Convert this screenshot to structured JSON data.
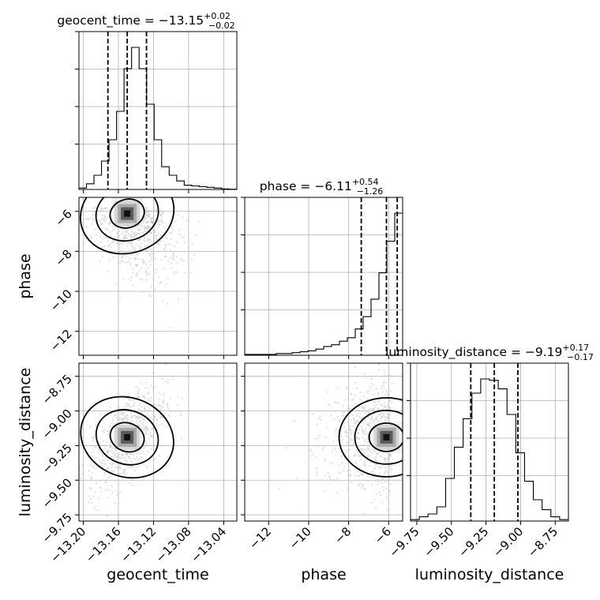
{
  "chart_data": {
    "type": "corner",
    "parameters": [
      {
        "name": "geocent_time",
        "title": "geocent_time = −13.15",
        "median": -13.15,
        "plus": "+0.02",
        "minus": "−0.02",
        "quantiles": [
          -13.172,
          -13.15,
          -13.128
        ],
        "range": [
          -13.205,
          -13.025
        ],
        "ticks": [
          -13.2,
          -13.16,
          -13.12,
          -13.08,
          -13.04
        ],
        "tick_labels": [
          "−13.20",
          "−13.16",
          "−13.12",
          "−13.08",
          "−13.04"
        ],
        "hist_counts": [
          1,
          4,
          10,
          20,
          35,
          55,
          85,
          100,
          85,
          60,
          35,
          16,
          10,
          6,
          3,
          2.5,
          2,
          1.5,
          1,
          0.4,
          0.2
        ]
      },
      {
        "name": "phase",
        "title": "phase = −6.11",
        "median": -6.11,
        "plus": "+0.54",
        "minus": "−1.26",
        "quantiles": [
          -7.37,
          -6.11,
          -5.57
        ],
        "range": [
          -13.2,
          -5.3
        ],
        "ticks": [
          -12,
          -10,
          -8,
          -6
        ],
        "tick_labels": [
          "−12",
          "−10",
          "−8",
          "−6"
        ],
        "hist_counts": [
          0.5,
          0.5,
          0.5,
          0.5,
          1,
          1,
          1.5,
          2,
          2.5,
          3.5,
          5,
          6,
          8,
          10,
          15,
          22,
          32,
          47,
          65,
          81
        ]
      },
      {
        "name": "luminosity_distance",
        "title": "luminosity_distance = −9.19",
        "median": -9.19,
        "plus": "+0.17",
        "minus": "−0.17",
        "quantiles": [
          -9.36,
          -9.19,
          -9.02
        ],
        "range": [
          -9.795,
          -8.655
        ],
        "ticks": [
          -9.75,
          -9.5,
          -9.25,
          -9.0,
          -8.75
        ],
        "tick_labels": [
          "−9.75",
          "−9.50",
          "−9.25",
          "−9.00",
          "−8.75"
        ],
        "hist_counts": [
          1,
          3,
          5,
          10,
          30,
          52,
          72,
          90,
          100,
          99,
          93,
          75,
          48,
          28,
          15,
          8,
          3,
          1
        ]
      }
    ],
    "grid": true
  }
}
